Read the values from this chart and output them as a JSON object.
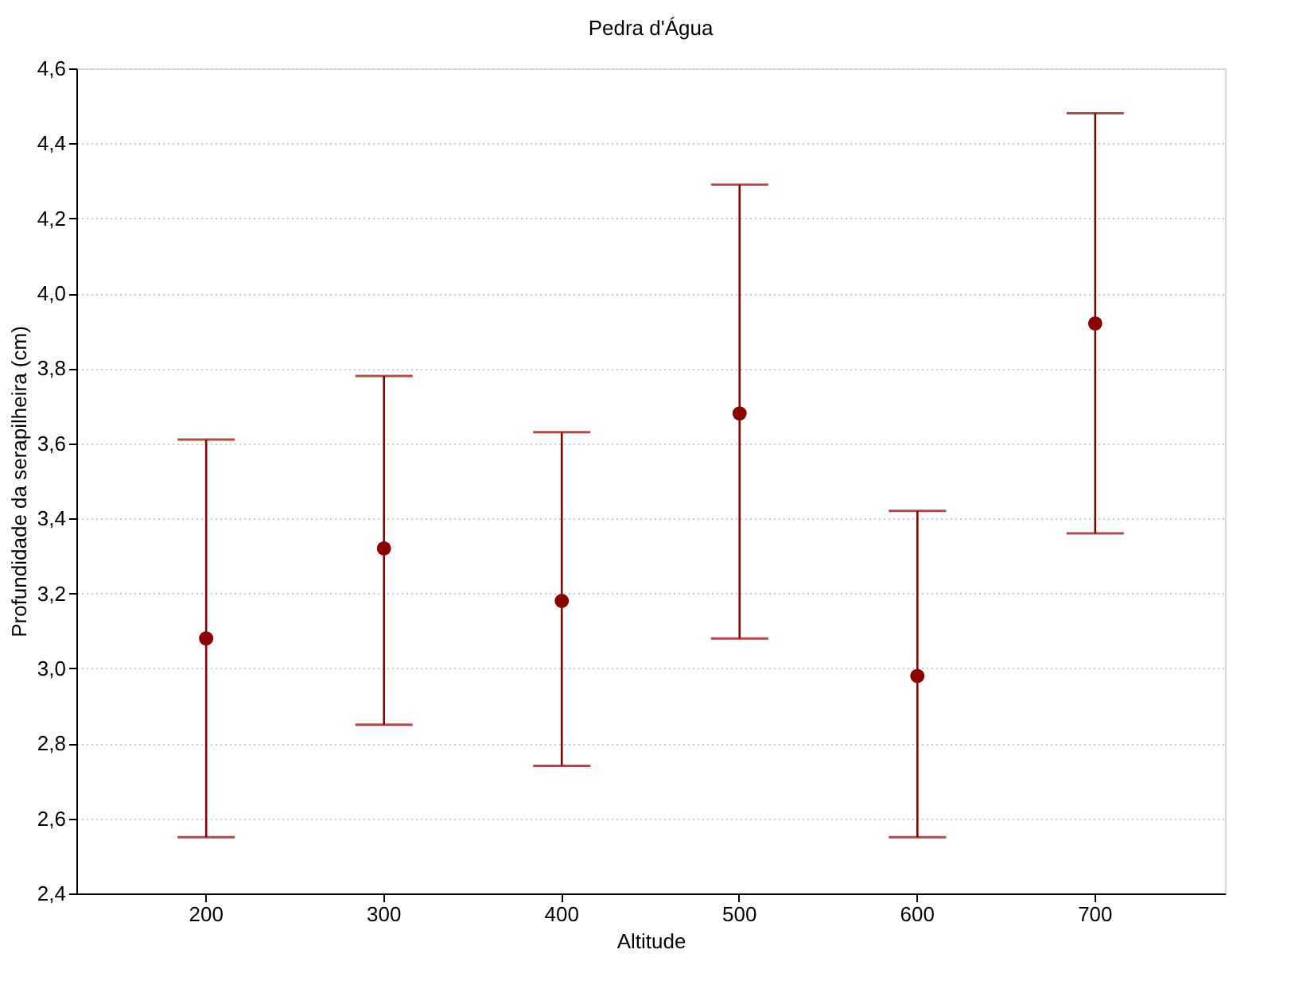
{
  "chart_data": {
    "type": "scatter",
    "title": "Pedra d'Água",
    "xlabel": "Altitude",
    "ylabel": "Profundidade da serapilheira (cm)",
    "categories": [
      "200",
      "300",
      "400",
      "500",
      "600",
      "700"
    ],
    "series": [
      {
        "color": "#8b0000",
        "values": [
          3.08,
          3.32,
          3.18,
          3.68,
          2.98,
          3.92
        ],
        "errors": [
          [
            2.55,
            3.61
          ],
          [
            2.85,
            3.78
          ],
          [
            2.74,
            3.63
          ],
          [
            3.08,
            4.29
          ],
          [
            2.55,
            3.42
          ],
          [
            3.36,
            4.48
          ]
        ]
      }
    ],
    "ylim": [
      2.4,
      4.6
    ],
    "yticks": [
      {
        "value": 2.4,
        "label": "2,4"
      },
      {
        "value": 2.6,
        "label": "2,6"
      },
      {
        "value": 2.8,
        "label": "2,8"
      },
      {
        "value": 3.0,
        "label": "3,0"
      },
      {
        "value": 3.2,
        "label": "3,2"
      },
      {
        "value": 3.4,
        "label": "3,4"
      },
      {
        "value": 3.6,
        "label": "3,6"
      },
      {
        "value": 3.8,
        "label": "3,8"
      },
      {
        "value": 4.0,
        "label": "4,0"
      },
      {
        "value": 4.2,
        "label": "4,2"
      },
      {
        "value": 4.4,
        "label": "4,4"
      },
      {
        "value": 4.6,
        "label": "4,6"
      }
    ],
    "grid": "y",
    "marker": "circle"
  }
}
